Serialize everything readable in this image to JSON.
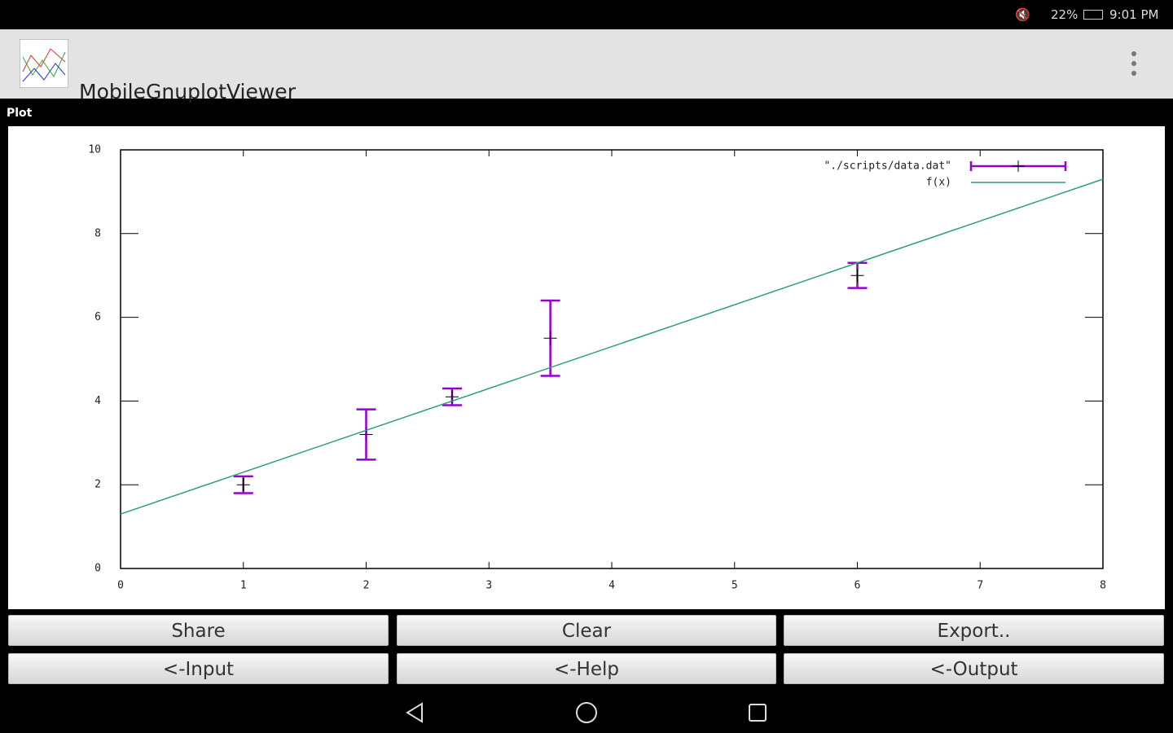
{
  "status_bar": {
    "battery": "22%",
    "time": "9:01 PM"
  },
  "app_bar": {
    "title": "MobileGnuplotViewer"
  },
  "panel": {
    "label": "Plot"
  },
  "chart_data": {
    "type": "errorbar",
    "xlim": [
      0,
      8
    ],
    "ylim": [
      0,
      10
    ],
    "xticks": [
      0,
      1,
      2,
      3,
      4,
      5,
      6,
      7,
      8
    ],
    "yticks": [
      0,
      2,
      4,
      6,
      8,
      10
    ],
    "legend": "top-right",
    "series": [
      {
        "name": "\"./scripts/data.dat\"",
        "color": "#9400d3",
        "x": [
          1,
          2,
          2.7,
          3.5,
          6
        ],
        "values": [
          2.0,
          3.2,
          4.1,
          5.5,
          7.0
        ],
        "errors": [
          0.2,
          0.6,
          0.2,
          0.9,
          0.3
        ]
      },
      {
        "name": "f(x)",
        "color": "#2e9e74",
        "x": [
          0,
          8
        ],
        "values": [
          1.3,
          9.3
        ]
      }
    ]
  },
  "buttons": [
    [
      "Share",
      "Clear",
      "Export.."
    ],
    [
      "<-Input",
      "<-Help",
      "<-Output"
    ]
  ]
}
